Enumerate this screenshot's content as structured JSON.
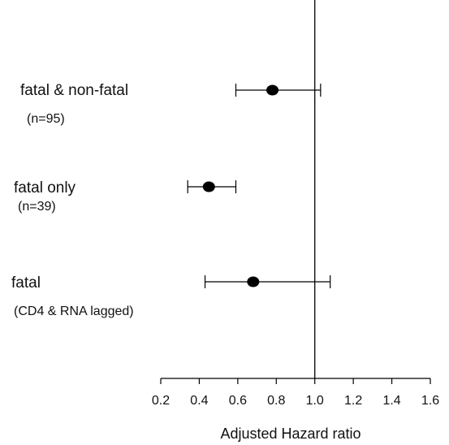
{
  "chart_data": {
    "type": "scatter",
    "subtype": "forest-plot",
    "title": "",
    "xlabel": "Adjusted Hazard ratio",
    "ylabel": "",
    "xlim": [
      0.2,
      1.6
    ],
    "xticks": [
      "0.2",
      "0.4",
      "0.6",
      "0.8",
      "1.0",
      "1.2",
      "1.4",
      "1.6"
    ],
    "reference_line": 1.0,
    "grid": false,
    "rows": [
      {
        "label": "fatal & non-fatal",
        "sublabel": "(n=95)",
        "estimate": 0.78,
        "ci_low": 0.59,
        "ci_high": 1.03
      },
      {
        "label": "fatal only",
        "sublabel": "(n=39)",
        "estimate": 0.45,
        "ci_low": 0.34,
        "ci_high": 0.59
      },
      {
        "label": "fatal",
        "sublabel": "(CD4 & RNA lagged)",
        "estimate": 0.68,
        "ci_low": 0.43,
        "ci_high": 1.08
      }
    ],
    "colors": {
      "marker": "#000000",
      "line": "#000000",
      "axis": "#000000"
    }
  }
}
